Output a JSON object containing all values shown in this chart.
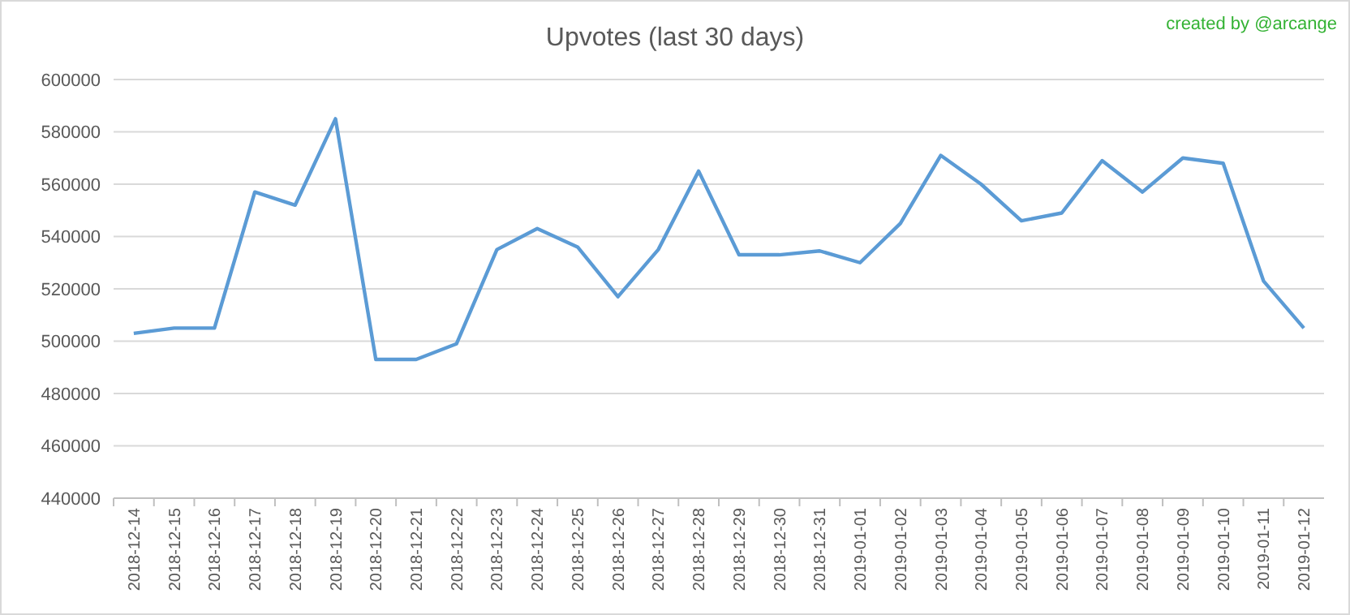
{
  "chart_data": {
    "type": "line",
    "title": "Upvotes (last 30 days)",
    "annotations": [
      "created by @arcange"
    ],
    "categories": [
      "2018-12-14",
      "2018-12-15",
      "2018-12-16",
      "2018-12-17",
      "2018-12-18",
      "2018-12-19",
      "2018-12-20",
      "2018-12-21",
      "2018-12-22",
      "2018-12-23",
      "2018-12-24",
      "2018-12-25",
      "2018-12-26",
      "2018-12-27",
      "2018-12-28",
      "2018-12-29",
      "2018-12-30",
      "2018-12-31",
      "2019-01-01",
      "2019-01-02",
      "2019-01-03",
      "2019-01-04",
      "2019-01-05",
      "2019-01-06",
      "2019-01-07",
      "2019-01-08",
      "2019-01-09",
      "2019-01-10",
      "2019-01-11",
      "2019-01-12"
    ],
    "series": [
      {
        "color": "#5b9bd5",
        "values": [
          503000,
          505000,
          505000,
          557000,
          552000,
          585000,
          493000,
          493000,
          499000,
          535000,
          543000,
          536000,
          517000,
          535000,
          565000,
          533000,
          533000,
          534500,
          530000,
          545000,
          571000,
          560000,
          546000,
          549000,
          569000,
          557000,
          570000,
          568000,
          523000,
          505000
        ]
      }
    ],
    "ylim": [
      440000,
      600000
    ],
    "yticks": [
      440000,
      460000,
      480000,
      500000,
      520000,
      540000,
      560000,
      580000,
      600000
    ],
    "grid": "y",
    "marker": "none",
    "line_style": "solid"
  }
}
